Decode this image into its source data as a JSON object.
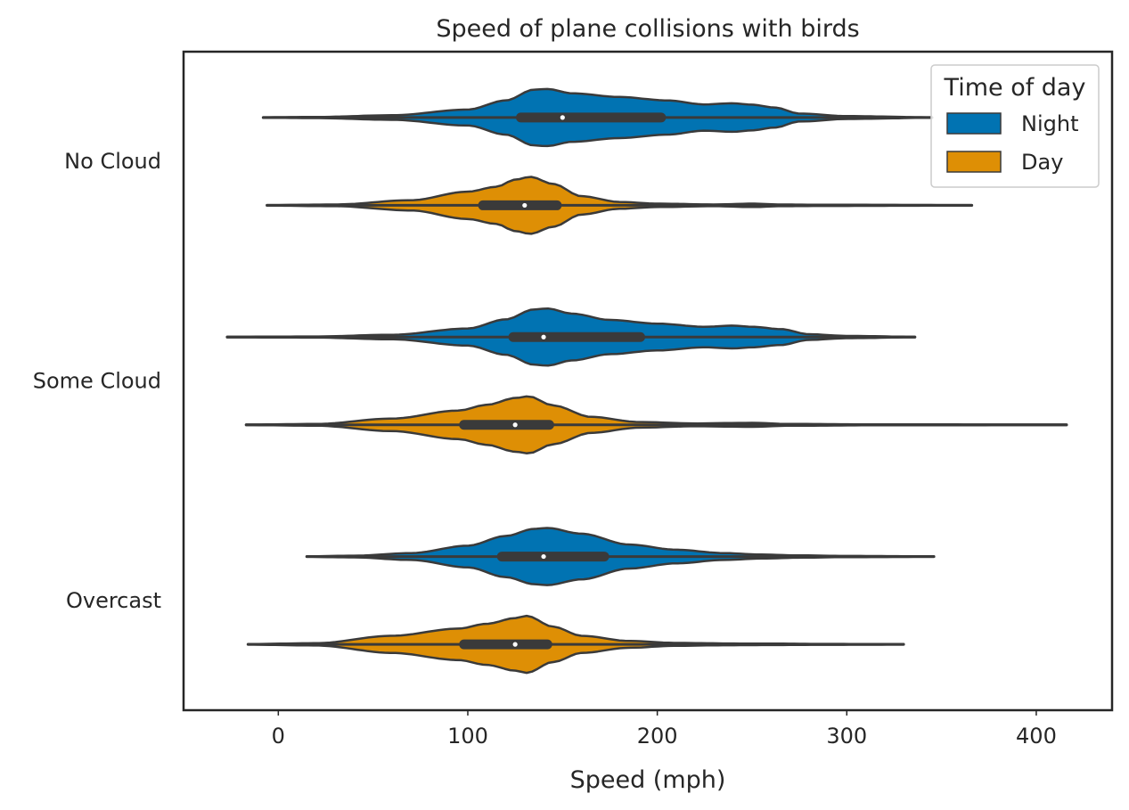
{
  "chart_data": {
    "type": "violin",
    "orientation": "horizontal",
    "title": "Speed of plane collisions with birds",
    "xlabel": "Speed (mph)",
    "ylabel": "",
    "xlim": [
      -50,
      440
    ],
    "xticks": [
      0,
      100,
      200,
      300,
      400
    ],
    "xtick_labels": [
      "0",
      "100",
      "200",
      "300",
      "400"
    ],
    "categories": [
      "No Cloud",
      "Some Cloud",
      "Overcast"
    ],
    "grid": false,
    "legend": {
      "title": "Time of day",
      "position": "top-right"
    },
    "series": [
      {
        "name": "Night",
        "color": "#0173b2",
        "violins": [
          {
            "category": "No Cloud",
            "whisker_min": -8,
            "q1": 128,
            "median": 150,
            "q3": 202,
            "whisker_max": 345,
            "density": [
              [
                -8,
                0.01
              ],
              [
                20,
                0.02
              ],
              [
                60,
                0.08
              ],
              [
                100,
                0.28
              ],
              [
                120,
                0.6
              ],
              [
                135,
                0.98
              ],
              [
                142,
                1.0
              ],
              [
                155,
                0.85
              ],
              [
                180,
                0.72
              ],
              [
                205,
                0.6
              ],
              [
                225,
                0.46
              ],
              [
                240,
                0.5
              ],
              [
                250,
                0.45
              ],
              [
                262,
                0.35
              ],
              [
                275,
                0.14
              ],
              [
                300,
                0.05
              ],
              [
                345,
                0.01
              ]
            ]
          },
          {
            "category": "Some Cloud",
            "whisker_min": -27,
            "q1": 124,
            "median": 140,
            "q3": 191,
            "whisker_max": 336,
            "density": [
              [
                -27,
                0.01
              ],
              [
                20,
                0.02
              ],
              [
                60,
                0.08
              ],
              [
                100,
                0.3
              ],
              [
                120,
                0.62
              ],
              [
                135,
                0.97
              ],
              [
                142,
                1.0
              ],
              [
                155,
                0.82
              ],
              [
                175,
                0.6
              ],
              [
                200,
                0.47
              ],
              [
                225,
                0.36
              ],
              [
                240,
                0.4
              ],
              [
                250,
                0.36
              ],
              [
                265,
                0.28
              ],
              [
                280,
                0.1
              ],
              [
                300,
                0.04
              ],
              [
                336,
                0.01
              ]
            ]
          },
          {
            "category": "Overcast",
            "whisker_min": 15,
            "q1": 118,
            "median": 140,
            "q3": 172,
            "whisker_max": 346,
            "density": [
              [
                15,
                0.01
              ],
              [
                40,
                0.03
              ],
              [
                70,
                0.12
              ],
              [
                100,
                0.38
              ],
              [
                120,
                0.72
              ],
              [
                135,
                0.97
              ],
              [
                142,
                1.0
              ],
              [
                160,
                0.8
              ],
              [
                185,
                0.42
              ],
              [
                210,
                0.24
              ],
              [
                235,
                0.12
              ],
              [
                255,
                0.07
              ],
              [
                275,
                0.04
              ],
              [
                300,
                0.02
              ],
              [
                346,
                0.01
              ]
            ]
          }
        ]
      },
      {
        "name": "Day",
        "color": "#de8f05",
        "violins": [
          {
            "category": "No Cloud",
            "whisker_min": -6,
            "q1": 108,
            "median": 130,
            "q3": 147,
            "whisker_max": 366,
            "density": [
              [
                -6,
                0.01
              ],
              [
                30,
                0.03
              ],
              [
                70,
                0.18
              ],
              [
                100,
                0.48
              ],
              [
                115,
                0.65
              ],
              [
                125,
                0.9
              ],
              [
                133,
                1.0
              ],
              [
                145,
                0.75
              ],
              [
                160,
                0.32
              ],
              [
                180,
                0.12
              ],
              [
                200,
                0.06
              ],
              [
                230,
                0.03
              ],
              [
                250,
                0.06
              ],
              [
                265,
                0.03
              ],
              [
                290,
                0.02
              ],
              [
                366,
                0.01
              ]
            ]
          },
          {
            "category": "Some Cloud",
            "whisker_min": -17,
            "q1": 98,
            "median": 125,
            "q3": 143,
            "whisker_max": 416,
            "density": [
              [
                -17,
                0.01
              ],
              [
                20,
                0.03
              ],
              [
                60,
                0.22
              ],
              [
                95,
                0.5
              ],
              [
                110,
                0.7
              ],
              [
                125,
                0.94
              ],
              [
                132,
                1.0
              ],
              [
                145,
                0.68
              ],
              [
                165,
                0.28
              ],
              [
                190,
                0.1
              ],
              [
                220,
                0.05
              ],
              [
                250,
                0.07
              ],
              [
                270,
                0.03
              ],
              [
                320,
                0.015
              ],
              [
                416,
                0.01
              ]
            ]
          },
          {
            "category": "Overcast",
            "whisker_min": -16,
            "q1": 98,
            "median": 125,
            "q3": 142,
            "whisker_max": 330,
            "density": [
              [
                -16,
                0.01
              ],
              [
                20,
                0.04
              ],
              [
                60,
                0.3
              ],
              [
                95,
                0.55
              ],
              [
                110,
                0.72
              ],
              [
                125,
                0.92
              ],
              [
                131,
                1.0
              ],
              [
                145,
                0.62
              ],
              [
                160,
                0.3
              ],
              [
                185,
                0.12
              ],
              [
                210,
                0.05
              ],
              [
                240,
                0.03
              ],
              [
                260,
                0.025
              ],
              [
                290,
                0.015
              ],
              [
                330,
                0.01
              ]
            ]
          }
        ]
      }
    ]
  }
}
